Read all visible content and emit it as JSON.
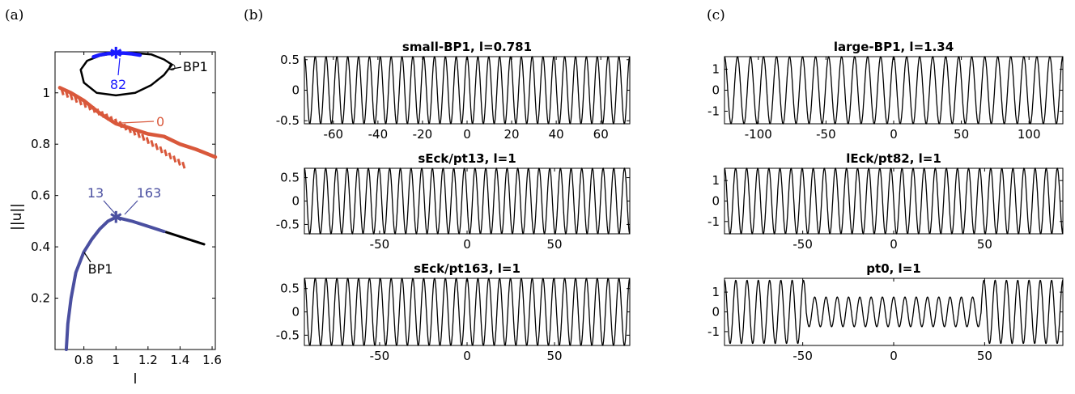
{
  "panel_labels": [
    "(a)",
    "(b)",
    "(c)"
  ],
  "chart_data": [
    {
      "id": "a",
      "type": "line",
      "xlabel": "l",
      "ylabel": "||u||",
      "xlim": [
        0.62,
        1.62
      ],
      "ylim": [
        0.0,
        1.16
      ],
      "xticks": [
        0.8,
        1,
        1.2,
        1.4,
        1.6
      ],
      "xtick_labels": [
        "0.8",
        "1",
        "1.2",
        "1.4",
        "1.6"
      ],
      "yticks": [
        0.2,
        0.4,
        0.6,
        0.8,
        1
      ],
      "ytick_labels": [
        "0.2",
        "0.4",
        "0.6",
        "0.8",
        "1"
      ],
      "colors": {
        "black": "#000000",
        "blue": "#1a1aff",
        "orange": "#d9583b",
        "purple": "#4a4fa0"
      },
      "series": [
        {
          "color": "#000000",
          "x": [
            1.35,
            1.3,
            1.22,
            1.12,
            1.0,
            0.9,
            0.82,
            0.78,
            0.8,
            0.88,
            1.0,
            1.12,
            1.22,
            1.3,
            1.35
          ],
          "y": [
            1.11,
            1.13,
            1.15,
            1.155,
            1.155,
            1.145,
            1.125,
            1.09,
            1.04,
            1.0,
            0.99,
            1.0,
            1.03,
            1.07,
            1.11
          ]
        },
        {
          "color": "#1a1aff",
          "x": [
            0.86,
            0.9,
            0.95,
            1.0,
            1.05,
            1.1,
            1.15
          ],
          "y": [
            1.14,
            1.148,
            1.153,
            1.155,
            1.155,
            1.152,
            1.147
          ]
        },
        {
          "color": "#d9583b",
          "x": [
            0.65,
            0.72,
            0.8,
            0.9,
            1.0,
            1.1,
            1.2,
            1.3,
            1.4,
            1.5,
            1.62
          ],
          "y": [
            1.02,
            1.0,
            0.97,
            0.92,
            0.88,
            0.86,
            0.84,
            0.83,
            0.8,
            0.78,
            0.75
          ]
        },
        {
          "color": "#000000",
          "x": [
            0.69,
            0.7,
            0.72,
            0.75,
            0.8,
            0.85,
            0.9,
            0.95,
            1.0,
            1.1,
            1.2,
            1.3,
            1.4,
            1.55
          ],
          "y": [
            0.0,
            0.1,
            0.2,
            0.3,
            0.38,
            0.43,
            0.47,
            0.5,
            0.515,
            0.5,
            0.48,
            0.46,
            0.44,
            0.41
          ]
        },
        {
          "color": "#4a4fa0",
          "x": [
            0.69,
            0.7,
            0.72,
            0.75,
            0.8,
            0.85,
            0.9,
            0.95,
            1.0,
            1.1,
            1.2,
            1.3
          ],
          "y": [
            0.0,
            0.1,
            0.2,
            0.3,
            0.38,
            0.43,
            0.47,
            0.5,
            0.515,
            0.5,
            0.48,
            0.46
          ]
        }
      ],
      "annotations": [
        {
          "text": "BP1",
          "color": "#000000"
        },
        {
          "text": "82",
          "color": "#1a1aff"
        },
        {
          "text": "0",
          "color": "#d9583b"
        },
        {
          "text": "13",
          "color": "#4a4fa0"
        },
        {
          "text": "163",
          "color": "#4a4fa0"
        },
        {
          "text": "BP1",
          "color": "#000000"
        }
      ]
    },
    {
      "id": "b1",
      "type": "line",
      "title": "small-BP1, l=0.781",
      "xlim": [
        -73,
        73
      ],
      "ylim": [
        -0.55,
        0.55
      ],
      "xticks": [
        -60,
        -40,
        -20,
        0,
        20,
        40,
        60
      ],
      "yticks": [
        0.5,
        0,
        -0.5
      ],
      "ytick_labels": [
        "0.5",
        "0",
        "-0.5"
      ],
      "wave": {
        "amplitude": 0.55,
        "periods": 30
      }
    },
    {
      "id": "b2",
      "type": "line",
      "title": "sEck/pt13, l=1",
      "xlim": [
        -93,
        93
      ],
      "ylim": [
        -0.7,
        0.7
      ],
      "xticks": [
        -50,
        0,
        50
      ],
      "yticks": [
        0.5,
        0,
        -0.5
      ],
      "ytick_labels": [
        "0.5",
        "0",
        "-0.5"
      ],
      "wave": {
        "amplitude": 0.7,
        "periods": 30.5
      }
    },
    {
      "id": "b3",
      "type": "line",
      "title": "sEck/pt163, l=1",
      "xlim": [
        -93,
        93
      ],
      "ylim": [
        -0.72,
        0.72
      ],
      "xticks": [
        -50,
        0,
        50
      ],
      "yticks": [
        0.5,
        0,
        -0.5
      ],
      "ytick_labels": [
        "0.5",
        "0",
        "-0.5"
      ],
      "wave": {
        "amplitude": 0.72,
        "periods": 30
      }
    },
    {
      "id": "c1",
      "type": "line",
      "title": "large-BP1, l=1.34",
      "xlim": [
        -125,
        125
      ],
      "ylim": [
        -1.6,
        1.6
      ],
      "xticks": [
        -100,
        -50,
        0,
        50,
        100
      ],
      "yticks": [
        1,
        0,
        -1
      ],
      "ytick_labels": [
        "1",
        "0",
        "-1"
      ],
      "wave": {
        "amplitude": 1.6,
        "periods": 26
      }
    },
    {
      "id": "c2",
      "type": "line",
      "title": "lEck/pt82, l=1",
      "xlim": [
        -93,
        93
      ],
      "ylim": [
        -1.6,
        1.6
      ],
      "xticks": [
        -50,
        0,
        50
      ],
      "yticks": [
        1,
        0,
        -1
      ],
      "ytick_labels": [
        "1",
        "0",
        "-1"
      ],
      "wave": {
        "amplitude": 1.6,
        "periods": 30.5
      }
    },
    {
      "id": "c3",
      "type": "line",
      "title": "pt0, l=1",
      "xlim": [
        -93,
        93
      ],
      "ylim": [
        -1.7,
        1.7
      ],
      "xticks": [
        -50,
        0,
        50
      ],
      "yticks": [
        1,
        0,
        -1
      ],
      "ytick_labels": [
        "1",
        "0",
        "-1"
      ],
      "wave": {
        "amplitude": 1.6,
        "periods": 30,
        "inner_amplitude": 0.75,
        "inner_range": [
          -48,
          48
        ]
      }
    }
  ]
}
